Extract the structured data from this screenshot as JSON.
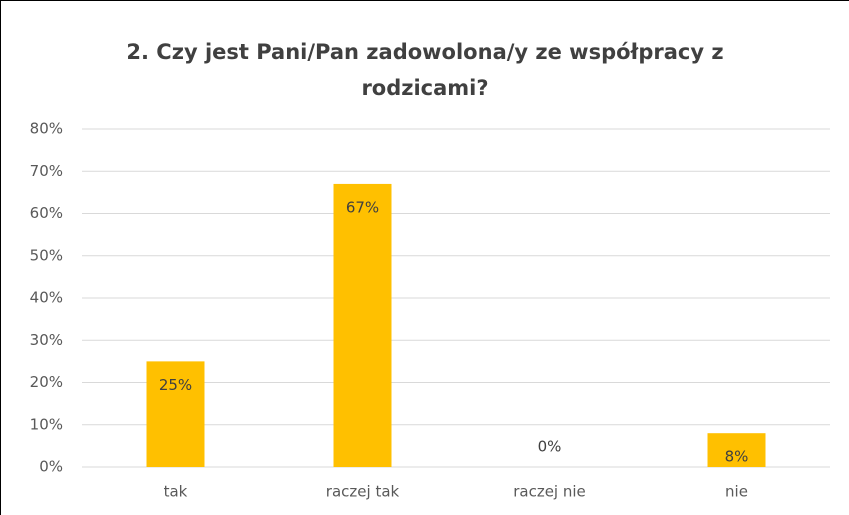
{
  "chart_data": {
    "type": "bar",
    "title": "2. Czy jest Pani/Pan zadowolona/y ze współpracy z rodzicami?",
    "categories": [
      "tak",
      "raczej tak",
      "raczej nie",
      "nie"
    ],
    "values": [
      25,
      67,
      0,
      8
    ],
    "value_labels": [
      "25%",
      "67%",
      "0%",
      "8%"
    ],
    "color": "#ffc000",
    "ylim": [
      0,
      80
    ],
    "yticks": [
      {
        "value": 0,
        "label": "0%"
      },
      {
        "value": 10,
        "label": "10%"
      },
      {
        "value": 20,
        "label": "20%"
      },
      {
        "value": 30,
        "label": "30%"
      },
      {
        "value": 40,
        "label": "40%"
      },
      {
        "value": 50,
        "label": "50%"
      },
      {
        "value": 60,
        "label": "60%"
      },
      {
        "value": 70,
        "label": "70%"
      },
      {
        "value": 80,
        "label": "80%"
      }
    ],
    "grid": true
  }
}
